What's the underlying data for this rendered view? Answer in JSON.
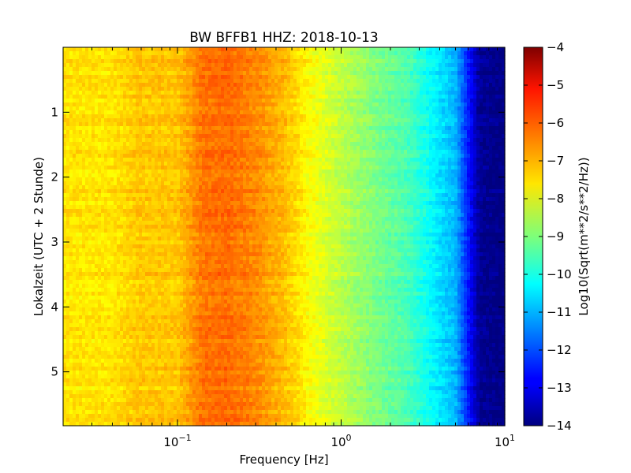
{
  "chart_data": {
    "type": "heatmap",
    "title": "BW BFFB1 HHZ: 2018-10-13",
    "xlabel": "Frequency [Hz]",
    "ylabel": "Lokalzeit (UTC + 2 Stunde)",
    "x_scale": "log",
    "xlim": [
      0.02,
      10
    ],
    "ylim": [
      0,
      5.83
    ],
    "y_inverted": true,
    "x_ticks": [
      {
        "value": 0.1,
        "base": "10",
        "exp": "−1"
      },
      {
        "value": 1,
        "base": "10",
        "exp": "0"
      },
      {
        "value": 10,
        "base": "10",
        "exp": "1"
      }
    ],
    "y_ticks": [
      {
        "value": 1,
        "label": "1"
      },
      {
        "value": 2,
        "label": "2"
      },
      {
        "value": 3,
        "label": "3"
      },
      {
        "value": 4,
        "label": "4"
      },
      {
        "value": 5,
        "label": "5"
      }
    ],
    "colorbar": {
      "label": "Log10(Sqrt(m**2/s**2/Hz))",
      "colormap": "jet",
      "min": -14,
      "max": -4,
      "ticks": [
        -4,
        -5,
        -6,
        -7,
        -8,
        -9,
        -10,
        -11,
        -12,
        -13,
        -14
      ],
      "tick_labels": [
        "−4",
        "−5",
        "−6",
        "−7",
        "−8",
        "−9",
        "−10",
        "−11",
        "−12",
        "−13",
        "−14"
      ]
    },
    "spectrum_profile": {
      "freq_hz": [
        0.02,
        0.04,
        0.059,
        0.1,
        0.12,
        0.14,
        0.2,
        0.3,
        0.45,
        0.65,
        1.0,
        1.6,
        2.5,
        3.5,
        5.0,
        7.0,
        10.0
      ],
      "log10_amplitude": [
        -7.5,
        -7.5,
        -7.2,
        -7.2,
        -6.8,
        -6.4,
        -6.3,
        -6.6,
        -7.1,
        -7.8,
        -8.4,
        -9.0,
        -9.5,
        -10.2,
        -11.0,
        -13.8,
        -14.0
      ]
    }
  }
}
